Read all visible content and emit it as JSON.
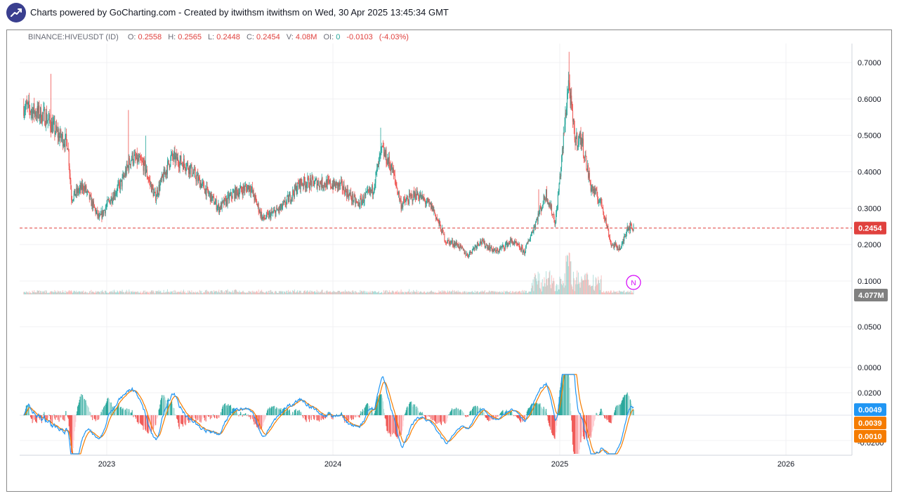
{
  "header": {
    "text": "Charts powered by GoCharting.com - Created by itwithsm itwithsm on Wed, 30 Apr 2025 13:45:34 GMT",
    "logo_icon": "trend-up-icon"
  },
  "legend": {
    "symbol": "BINANCE:HIVEUSDT (ID)",
    "open_label": "O:",
    "open": "0.2558",
    "high_label": "H:",
    "high": "0.2565",
    "low_label": "L:",
    "low": "0.2448",
    "close_label": "C:",
    "close": "0.2454",
    "volume_label": "V:",
    "volume": "4.08M",
    "oi_label": "OI:",
    "oi": "0",
    "change": "-0.0103",
    "change_pct": "(-4.03%)"
  },
  "colors": {
    "up": "#26a69a",
    "down": "#ef5350",
    "macd_line": "#2196f3",
    "signal_line": "#f57c00",
    "price_line": "#e0413e",
    "volume_tag": "#808080"
  },
  "chart_data": {
    "type": "candlestick",
    "symbol": "BINANCE:HIVEUSDT",
    "interval": "1D",
    "x_axis": {
      "ticks": [
        "2023",
        "2024",
        "2025",
        "2026"
      ],
      "range": [
        "2022-08",
        "2026-04"
      ]
    },
    "price_axis": {
      "ticks": [
        "0.7000",
        "0.6000",
        "0.5000",
        "0.4000",
        "0.3000",
        "0.2000",
        "0.1000"
      ],
      "range": [
        0.08,
        0.72
      ]
    },
    "volume_axis": {
      "ticks": [
        "0.0500",
        "0.0000"
      ]
    },
    "macd_axis": {
      "ticks": [
        "0.0200",
        "-0.0200"
      ]
    },
    "last_price": "0.2454",
    "last_volume": "4.077M",
    "macd_values": {
      "macd": "0.0049",
      "signal": "0.0039",
      "histogram": "0.0010"
    },
    "price_anchors": [
      [
        "2022-08-20",
        0.58
      ],
      [
        "2022-09-25",
        0.55
      ],
      [
        "2022-10-15",
        0.5
      ],
      [
        "2022-10-30",
        0.48
      ],
      [
        "2022-11-05",
        0.33
      ],
      [
        "2022-11-25",
        0.36
      ],
      [
        "2022-12-20",
        0.27
      ],
      [
        "2023-01-05",
        0.32
      ],
      [
        "2023-01-25",
        0.37
      ],
      [
        "2023-02-10",
        0.44
      ],
      [
        "2023-03-01",
        0.42
      ],
      [
        "2023-03-20",
        0.33
      ],
      [
        "2023-04-15",
        0.44
      ],
      [
        "2023-05-10",
        0.42
      ],
      [
        "2023-06-01",
        0.37
      ],
      [
        "2023-07-01",
        0.3
      ],
      [
        "2023-07-25",
        0.34
      ],
      [
        "2023-08-20",
        0.36
      ],
      [
        "2023-09-10",
        0.27
      ],
      [
        "2023-10-10",
        0.3
      ],
      [
        "2023-11-10",
        0.37
      ],
      [
        "2023-12-10",
        0.37
      ],
      [
        "2024-01-15",
        0.36
      ],
      [
        "2024-02-10",
        0.31
      ],
      [
        "2024-03-05",
        0.35
      ],
      [
        "2024-03-20",
        0.46
      ],
      [
        "2024-04-05",
        0.41
      ],
      [
        "2024-04-20",
        0.31
      ],
      [
        "2024-05-15",
        0.34
      ],
      [
        "2024-06-10",
        0.3
      ],
      [
        "2024-07-01",
        0.21
      ],
      [
        "2024-07-20",
        0.2
      ],
      [
        "2024-08-05",
        0.17
      ],
      [
        "2024-08-25",
        0.21
      ],
      [
        "2024-09-20",
        0.18
      ],
      [
        "2024-10-15",
        0.21
      ],
      [
        "2024-11-05",
        0.18
      ],
      [
        "2024-11-25",
        0.27
      ],
      [
        "2024-12-10",
        0.34
      ],
      [
        "2024-12-25",
        0.26
      ],
      [
        "2025-01-05",
        0.45
      ],
      [
        "2025-01-15",
        0.65
      ],
      [
        "2025-01-25",
        0.49
      ],
      [
        "2025-02-05",
        0.49
      ],
      [
        "2025-02-20",
        0.36
      ],
      [
        "2025-03-10",
        0.31
      ],
      [
        "2025-03-25",
        0.2
      ],
      [
        "2025-04-10",
        0.19
      ],
      [
        "2025-04-20",
        0.25
      ],
      [
        "2025-04-30",
        0.2454
      ]
    ]
  }
}
